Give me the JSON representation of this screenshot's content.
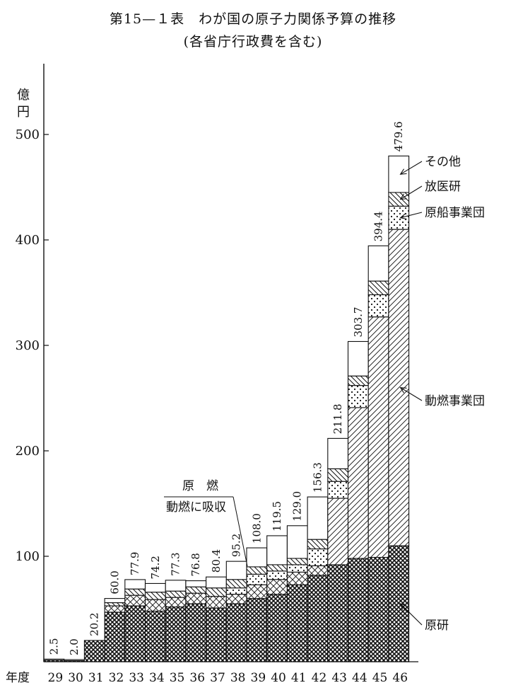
{
  "title": "第15—１表　わが国の原子力関係予算の推移",
  "subtitle": "(各省庁行政費を含む)",
  "chart_data": {
    "type": "bar",
    "stacked": true,
    "ylabel": "億\n円",
    "xlabel": "年度",
    "ylim": [
      0,
      500
    ],
    "yticks": [
      100,
      200,
      300,
      400,
      500
    ],
    "categories": [
      "29",
      "30",
      "31",
      "32",
      "33",
      "34",
      "35",
      "36",
      "37",
      "38",
      "39",
      "40",
      "41",
      "42",
      "43",
      "44",
      "45",
      "46"
    ],
    "totals": [
      2.5,
      2.0,
      20.2,
      60.0,
      77.9,
      74.2,
      77.3,
      76.8,
      80.4,
      95.2,
      108.0,
      119.5,
      129.0,
      156.3,
      211.8,
      303.7,
      394.4,
      479.6
    ],
    "total_labels": [
      "2.5",
      "2.0",
      "20.2",
      "60.0",
      "77.9",
      "74.2",
      "77.3",
      "76.8",
      "80.4",
      "95.2",
      "108.0",
      "119.5",
      "129.0",
      "156.3",
      "211.8",
      "303.7",
      "394.4",
      "479.6"
    ],
    "series": [
      {
        "name": "原研",
        "pattern": "crosshatch-dense",
        "values": [
          1.5,
          1.0,
          20.2,
          47,
          53,
          48,
          52,
          55,
          51,
          55,
          60,
          64,
          73,
          82,
          92,
          98,
          99,
          110
        ]
      },
      {
        "name": "動燃事業団",
        "pattern": "diagonal",
        "values": [
          0,
          0,
          0,
          0,
          0,
          0,
          0,
          0,
          0,
          0,
          0,
          0,
          0,
          0,
          63,
          143,
          228,
          300
        ]
      },
      {
        "name": "原燃・動燃に吸収",
        "pattern": "crosshatch-light",
        "values": [
          0,
          0,
          0,
          6,
          10,
          11,
          9,
          10,
          11,
          9,
          13,
          14,
          12,
          9,
          0,
          0,
          0,
          0
        ]
      },
      {
        "name": "原船事業団",
        "pattern": "dots",
        "values": [
          0,
          0,
          0,
          0,
          0,
          0,
          0,
          0,
          0,
          6,
          10,
          8,
          7,
          16,
          16,
          21,
          21,
          22
        ]
      },
      {
        "name": "放医研",
        "pattern": "diagonal-back",
        "values": [
          0,
          0,
          0,
          3,
          6,
          7,
          6,
          6,
          8,
          8,
          7,
          6,
          6,
          9,
          12,
          9,
          13,
          13
        ]
      },
      {
        "name": "その他",
        "pattern": "blank",
        "values": [
          1.0,
          1.0,
          0,
          4,
          8.9,
          8.2,
          10.3,
          5.8,
          10.4,
          17.2,
          18,
          27.5,
          31,
          40.3,
          28.8,
          32.7,
          33.4,
          34.6
        ]
      }
    ],
    "annotations": [
      {
        "text": "原　燃",
        "target": "原燃・動燃に吸収"
      },
      {
        "text": "動燃に吸収",
        "target": "原燃・動燃に吸収"
      }
    ],
    "legend_labels": [
      "その他",
      "放医研",
      "原船事業団",
      "動燃事業団",
      "原研"
    ]
  }
}
